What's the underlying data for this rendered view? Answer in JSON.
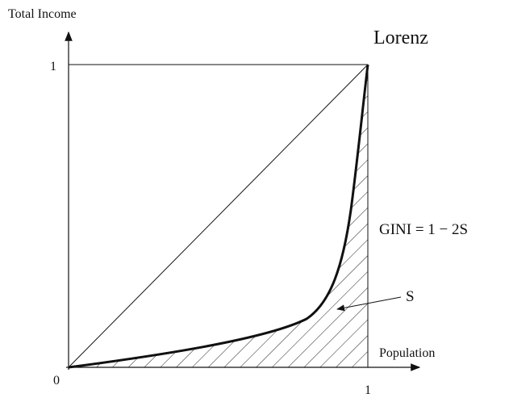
{
  "axes": {
    "y_label": "Total Income",
    "x_label": "Population",
    "origin_label": "0",
    "y_tick_label": "1",
    "x_tick_label": "1"
  },
  "curve_label": "Lorenz",
  "formula": "GINI = 1 − 2S",
  "area_label": "S"
}
